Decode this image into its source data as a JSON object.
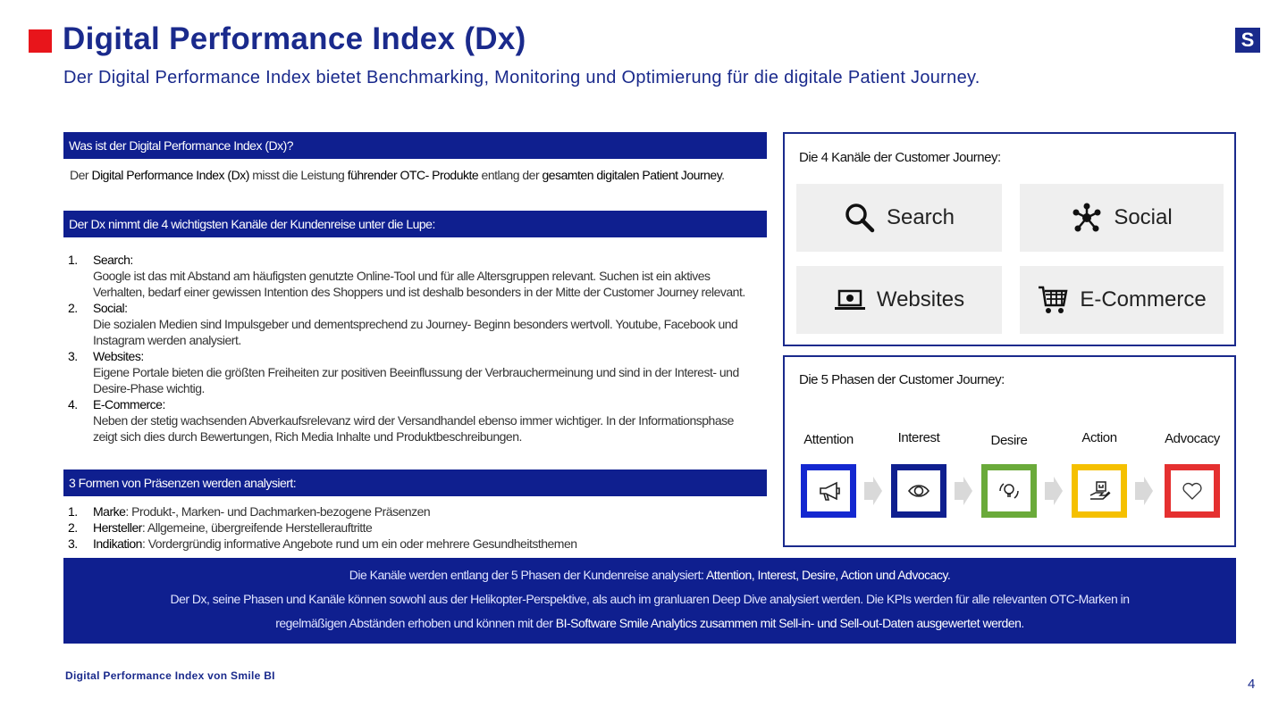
{
  "header": {
    "title": "Digital Performance Index (Dx)",
    "subtitle": "Der Digital Performance Index bietet Benchmarking, Monitoring und Optimierung für die digitale Patient Journey.",
    "logo_text": "S"
  },
  "section1": {
    "heading": "Was ist der Digital Performance Index (Dx)?",
    "parts": [
      "Der ",
      "Digital Performance Index (Dx)",
      " misst die Leistung ",
      "führender OTC-  Produkte",
      " entlang der ",
      "gesamten digitalen Patient Journey",
      "."
    ]
  },
  "section2": {
    "heading": "Der Dx nimmt die 4 wichtigsten Kanäle der Kundenreise unter die Lupe:",
    "items": [
      {
        "num": "1.",
        "title": "Search:",
        "text": "Google ist das mit Abstand am häufigsten genutzte Online-Tool und für alle  Altersgruppen relevant. Suchen ist ein aktives Verhalten, bedarf einer gewissen Intention des Shoppers und ist deshalb besonders in der Mitte der Customer Journey relevant."
      },
      {
        "num": "2.",
        "title": "Social:",
        "text": "Die sozialen Medien sind Impulsgeber und dementsprechend zu Journey-  Beginn besonders wertvoll. Youtube, Facebook und Instagram werden  analysiert."
      },
      {
        "num": "3.",
        "title": "Websites:",
        "text": "Eigene Portale bieten die größten Freiheiten zur positiven Beeinflussung der Verbrauchermeinung und sind in der Interest- und Desire-Phase wichtig."
      },
      {
        "num": "4.",
        "title": "E-Commerce:",
        "text": "Neben der stetig wachsenden Abverkaufsrelevanz wird der Versandhandel ebenso immer wichtiger. In der Informationsphase zeigt sich dies durch Bewertungen, Rich Media Inhalte und Produktbeschreibungen."
      }
    ]
  },
  "section3": {
    "heading": "3 Formen von Präsenzen werden analysiert:",
    "items": [
      {
        "num": "1.",
        "title": "Marke",
        "text": ": Produkt-, Marken- und Dachmarken-bezogene Präsenzen"
      },
      {
        "num": "2.",
        "title": "Hersteller",
        "text": ": Allgemeine, übergreifende Herstellerauftritte"
      },
      {
        "num": "3.",
        "title": "Indikation",
        "text": ": Vordergründig informative Angebote rund um ein oder mehrere Gesundheitsthemen"
      }
    ]
  },
  "channels": {
    "title": "Die 4 Kanäle der Customer Journey:",
    "items": [
      {
        "label": "Search",
        "icon": "search-icon"
      },
      {
        "label": "Social",
        "icon": "network-icon"
      },
      {
        "label": "Websites",
        "icon": "laptop-icon"
      },
      {
        "label": "E-Commerce",
        "icon": "cart-icon"
      }
    ]
  },
  "phases": {
    "title": "Die 5 Phasen der Customer Journey:",
    "items": [
      {
        "label": "Attention",
        "color": "#1428d0",
        "icon": "megaphone-icon"
      },
      {
        "label": "Interest",
        "color": "#0f1f8f",
        "icon": "eye-icon"
      },
      {
        "label": "Desire",
        "color": "#6aaa3a",
        "icon": "lightbulb-icon"
      },
      {
        "label": "Action",
        "color": "#f5c000",
        "icon": "hand-bag-icon"
      },
      {
        "label": "Advocacy",
        "color": "#e53030",
        "icon": "heart-icon"
      }
    ]
  },
  "footer": {
    "line1": [
      "Die Kanäle werden entlang der 5 Phasen der Kundenreise analysiert: ",
      "Attention, Interest, Desire, Action und Advocacy."
    ],
    "line2": "Der Dx, seine Phasen und Kanäle können sowohl aus der Helikopter-Perspektive, als auch im granluaren Deep Dive  analysiert werden. Die KPIs werden für alle relevanten OTC-Marken in",
    "line3": [
      "regelmäßigen Abständen erhoben und können mit der ",
      "BI-Software Smile Analytics zusammen  mit Sell-in- und Sell-out-Daten ausgewertet werden",
      "."
    ]
  },
  "source": "Digital Performance Index von Smile BI",
  "page_number": "4"
}
